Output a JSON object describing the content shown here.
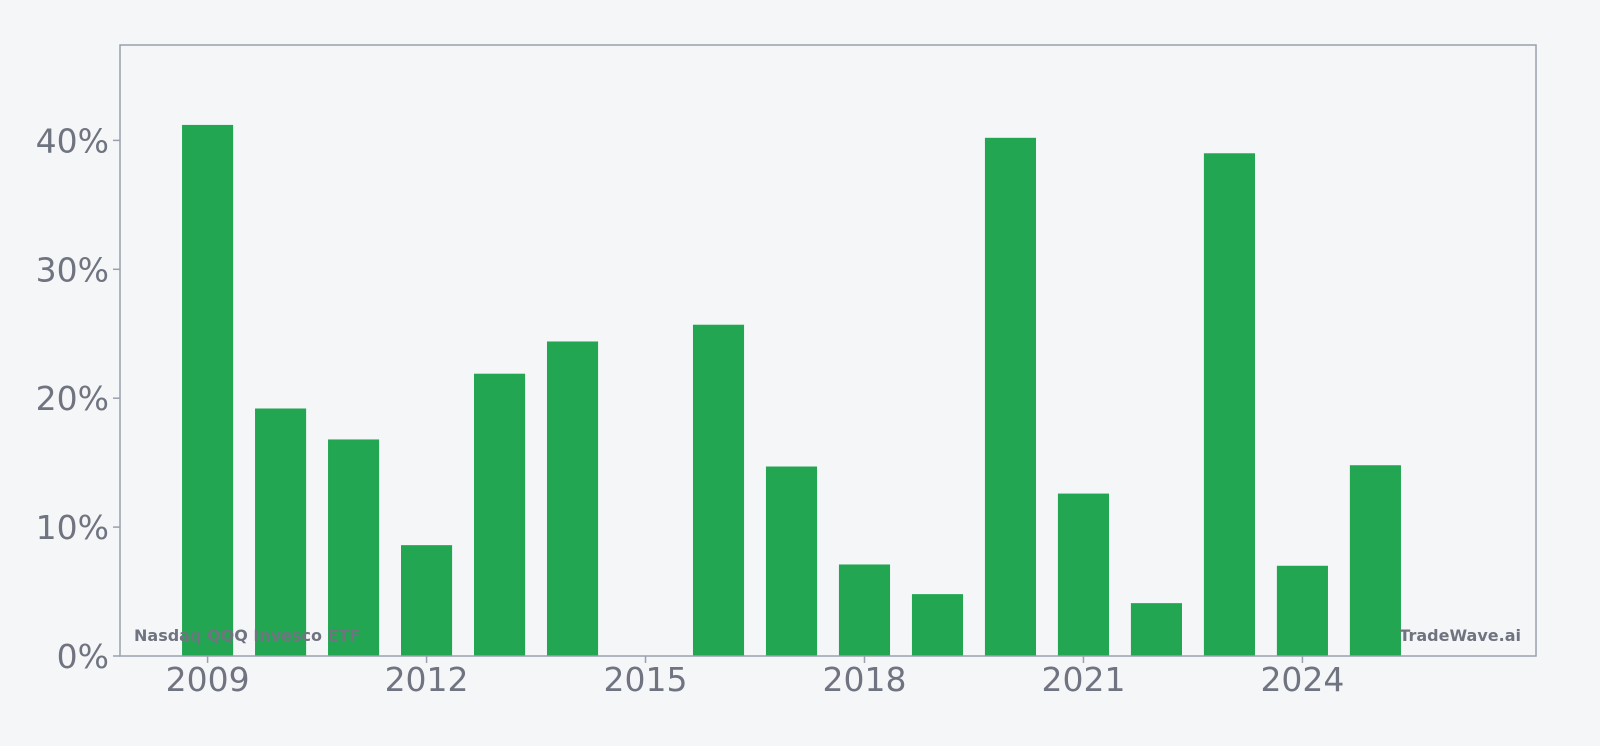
{
  "chart_data": {
    "type": "bar",
    "x": [
      2009,
      2010,
      2011,
      2012,
      2013,
      2014,
      2015,
      2016,
      2017,
      2018,
      2019,
      2020,
      2021,
      2022,
      2023,
      2024,
      2025
    ],
    "values": [
      41.2,
      19.2,
      16.8,
      8.6,
      21.9,
      24.4,
      0,
      25.7,
      14.7,
      7.1,
      4.8,
      40.2,
      12.6,
      4.1,
      39.0,
      7.0,
      14.8
    ],
    "ylim": [
      0,
      47.4
    ],
    "xlim": [
      2007.8,
      2027.2
    ],
    "y_ticks": [
      0,
      10,
      20,
      30,
      40
    ],
    "y_tick_labels": [
      "0%",
      "10%",
      "20%",
      "30%",
      "40%"
    ],
    "x_ticks": [
      2009,
      2012,
      2015,
      2018,
      2021,
      2024
    ],
    "x_tick_labels": [
      "2009",
      "2012",
      "2015",
      "2018",
      "2021",
      "2024"
    ],
    "grid": false,
    "colors": {
      "bar": "#22a652",
      "frame": "#9aa0ad",
      "text": "#6f7480",
      "background": "#f5f6f8"
    }
  },
  "watermark_left": "Nasdaq QQQ Invesco ETF",
  "watermark_right": "TradeWave.ai"
}
